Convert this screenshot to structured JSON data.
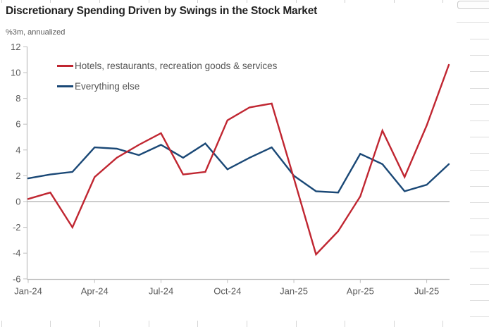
{
  "chart_data": {
    "type": "line",
    "title": "Discretionary Spending Driven by Swings in the Stock Market",
    "units_label": "%3m, annualized",
    "x": [
      "Jan-24",
      "Feb-24",
      "Mar-24",
      "Apr-24",
      "May-24",
      "Jun-24",
      "Jul-24",
      "Aug-24",
      "Sep-24",
      "Oct-24",
      "Nov-24",
      "Dec-24",
      "Jan-25",
      "Feb-25",
      "Mar-25",
      "Apr-25",
      "May-25",
      "Jun-25",
      "Jul-25",
      "Aug-25"
    ],
    "x_tick_labels": [
      "Jan-24",
      "Apr-24",
      "Jul-24",
      "Oct-24",
      "Jan-25",
      "Apr-25",
      "Jul-25"
    ],
    "y_ticks": [
      -6,
      -4,
      -2,
      0,
      2,
      4,
      6,
      8,
      10,
      12
    ],
    "ylim": [
      -6,
      12
    ],
    "grid": "zero-line-only",
    "legend_position": "top-left-inside",
    "series": [
      {
        "name": "Hotels, restaurants, recreation goods & services",
        "color": "#C02631",
        "values": [
          0.2,
          0.7,
          -2.0,
          1.9,
          3.4,
          4.4,
          5.3,
          2.1,
          2.3,
          6.3,
          7.3,
          7.6,
          1.8,
          -4.1,
          -2.3,
          0.4,
          5.5,
          1.9,
          5.9,
          10.6
        ]
      },
      {
        "name": "Everything else",
        "color": "#1A4876",
        "values": [
          1.8,
          2.1,
          2.3,
          4.2,
          4.1,
          3.6,
          4.4,
          3.4,
          4.5,
          2.5,
          3.4,
          4.2,
          2.0,
          0.8,
          0.7,
          3.7,
          2.9,
          0.8,
          1.3,
          2.9
        ]
      }
    ]
  }
}
